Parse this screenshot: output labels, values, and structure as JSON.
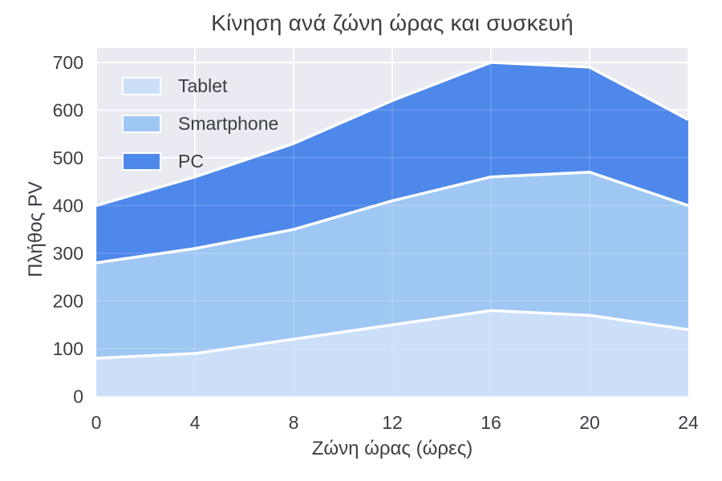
{
  "title": "Κίνηση ανά ζώνη ώρας και συσκευή",
  "axes": {
    "xlabel": "Ζώνη ώρας (ώρες)",
    "ylabel": "Πλήθος PV"
  },
  "legend": {
    "items": [
      {
        "label": "Tablet",
        "color": "#ccdff8"
      },
      {
        "label": "Smartphone",
        "color": "#9fc7f4"
      },
      {
        "label": "PC",
        "color": "#4e88ea"
      }
    ]
  },
  "chart_data": {
    "type": "area",
    "stacked": true,
    "title": "Κίνηση ανά ζώνη ώρας και συσκευή",
    "xlabel": "Ζώνη ώρας (ώρες)",
    "ylabel": "Πλήθος PV",
    "x": [
      0,
      4,
      8,
      12,
      16,
      20,
      24
    ],
    "series": [
      {
        "name": "Tablet",
        "color": "#ccdff8",
        "values": [
          80,
          90,
          120,
          150,
          180,
          170,
          140
        ]
      },
      {
        "name": "Smartphone",
        "color": "#9fc7f4",
        "values": [
          200,
          220,
          230,
          260,
          280,
          300,
          260
        ]
      },
      {
        "name": "PC",
        "color": "#4e88ea",
        "values": [
          120,
          150,
          180,
          210,
          240,
          220,
          180
        ]
      }
    ],
    "cumulative_totals": {
      "tablet_top": [
        80,
        90,
        120,
        150,
        180,
        170,
        140
      ],
      "smartphone_top": [
        280,
        310,
        350,
        410,
        460,
        470,
        400
      ],
      "pc_top": [
        400,
        460,
        530,
        620,
        700,
        690,
        580
      ]
    },
    "xticks": [
      0,
      4,
      8,
      12,
      16,
      20,
      24
    ],
    "yticks": [
      0,
      100,
      200,
      300,
      400,
      500,
      600,
      700
    ],
    "xlim": [
      0,
      24
    ],
    "ylim": [
      0,
      730
    ],
    "grid": true,
    "legend_position": "top-left",
    "colors": {
      "plot_background": "#e9eaf2",
      "grid": "#ffffff",
      "boundary_line": "#ffffff",
      "text": "#3a3f44"
    }
  }
}
